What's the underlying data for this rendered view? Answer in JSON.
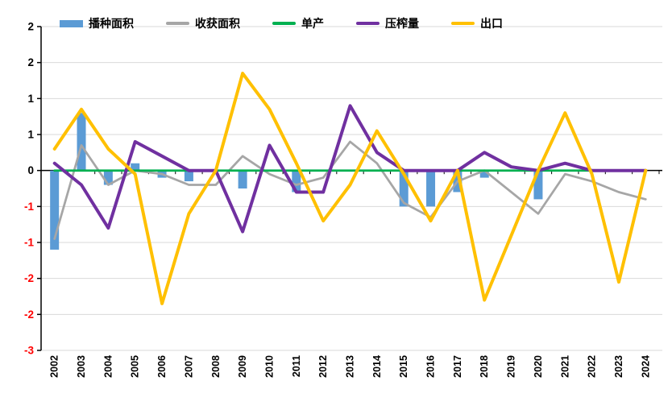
{
  "page": {
    "background": "#FFFFFF"
  },
  "legend": {
    "position": "top",
    "items": [
      {
        "label": "播种面积",
        "color": "#5B9BD5",
        "marker": "bar"
      },
      {
        "label": "收获面积",
        "color": "#A6A6A6",
        "marker": "line"
      },
      {
        "label": "单产",
        "color": "#00B050",
        "marker": "line"
      },
      {
        "label": "压榨量",
        "color": "#7030A0",
        "marker": "line"
      },
      {
        "label": "出口",
        "color": "#FFC000",
        "marker": "line"
      }
    ]
  },
  "chart_data": {
    "type": "combo-bar-line",
    "title": "",
    "xlabel": "",
    "ylabel": "",
    "categories": [
      "2002",
      "2003",
      "2004",
      "2005",
      "2006",
      "2007",
      "2008",
      "2009",
      "2010",
      "2011",
      "2012",
      "2013",
      "2014",
      "2015",
      "2016",
      "2017",
      "2018",
      "2019",
      "2020",
      "2021",
      "2022",
      "2023",
      "2024"
    ],
    "series": [
      {
        "name": "播种面积",
        "type": "bar",
        "color": "#5B9BD5",
        "values": [
          -1.1,
          0.8,
          -0.2,
          0.1,
          -0.1,
          -0.15,
          0,
          -0.25,
          0,
          -0.3,
          0,
          0,
          0,
          -0.5,
          -0.5,
          -0.3,
          -0.1,
          0,
          -0.4,
          0,
          0,
          0,
          0
        ]
      },
      {
        "name": "收获面积",
        "type": "line",
        "color": "#A6A6A6",
        "width": 2.75,
        "values": [
          -0.95,
          0.35,
          -0.2,
          0,
          -0.05,
          -0.2,
          -0.2,
          0.2,
          -0.05,
          -0.2,
          -0.1,
          0.4,
          0.1,
          -0.45,
          -0.65,
          -0.15,
          0,
          -0.3,
          -0.6,
          -0.05,
          -0.15,
          -0.3,
          -0.4
        ]
      },
      {
        "name": "单产",
        "type": "line",
        "color": "#00B050",
        "width": 2.75,
        "values": [
          0,
          0,
          0,
          0,
          0,
          0,
          0,
          0,
          0,
          0,
          0,
          0,
          0,
          0,
          0,
          0,
          0,
          0,
          0,
          0,
          0,
          0,
          0
        ]
      },
      {
        "name": "压榨量",
        "type": "line",
        "color": "#7030A0",
        "width": 4,
        "values": [
          0.1,
          -0.2,
          -0.8,
          0.4,
          0.2,
          0,
          0,
          -0.85,
          0.35,
          -0.3,
          -0.3,
          0.9,
          0.25,
          0,
          0,
          0,
          0.25,
          0.05,
          0,
          0.1,
          0,
          0,
          0
        ]
      },
      {
        "name": "出口",
        "type": "line",
        "color": "#FFC000",
        "width": 4,
        "values": [
          0.3,
          0.85,
          0.3,
          -0.05,
          -1.85,
          -0.6,
          0,
          1.35,
          0.85,
          0.1,
          -0.7,
          -0.2,
          0.55,
          -0.05,
          -0.7,
          0,
          -1.8,
          -0.9,
          0,
          0.8,
          -0.05,
          -1.55,
          0
        ]
      }
    ],
    "y_axis": {
      "min": -2.5,
      "max": 2.0,
      "step": 0.5,
      "tick_values": [
        2.0,
        1.5,
        1.0,
        0.5,
        0,
        -0.5,
        -1.0,
        -1.5,
        -2.0,
        -2.5
      ],
      "tick_labels": [
        "2",
        "2",
        "1",
        "1",
        "0",
        "-1",
        "-1",
        "-2",
        "-2",
        "-3"
      ],
      "positive_label_color": "#000000",
      "negative_label_color": "#FF0000"
    },
    "x_axis": {
      "label_rotation_deg": -90,
      "label_color": "#000000"
    },
    "grid": true,
    "gridline_color": "#D9D9D9",
    "axis_color": "#000000",
    "legend_position": "top"
  }
}
